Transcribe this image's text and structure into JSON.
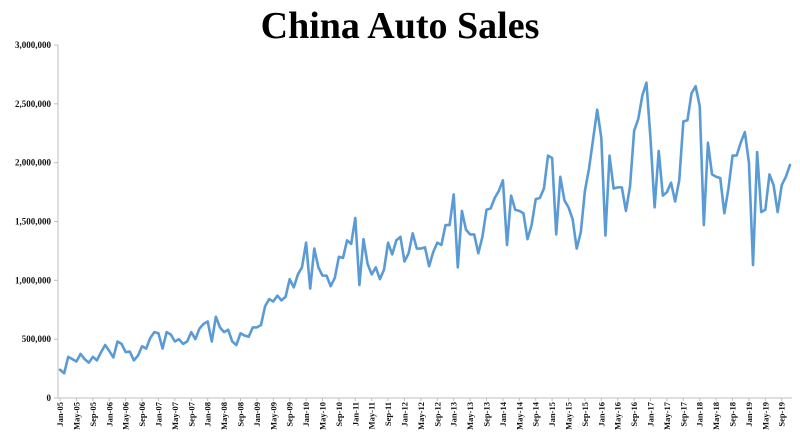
{
  "chart_data": {
    "type": "line",
    "title": "China Auto Sales",
    "xlabel": "",
    "ylabel": "",
    "ylim": [
      0,
      3000000
    ],
    "grid": false,
    "legend": "none",
    "series_color": "#5B9BD5",
    "y_ticks": [
      "0",
      "500,000",
      "1,000,000",
      "1,500,000",
      "2,000,000",
      "2,500,000",
      "3,000,000"
    ],
    "x_tick_labels": [
      "Jan-05",
      "May-05",
      "Sep-05",
      "Jan-06",
      "May-06",
      "Sep-06",
      "Jan-07",
      "May-07",
      "Sep-07",
      "Jan-08",
      "May-08",
      "Sep-08",
      "Jan-09",
      "May-09",
      "Sep-09",
      "Jan-10",
      "May-10",
      "Sep-10",
      "Jan-11",
      "May-11",
      "Sep-11",
      "Jan-12",
      "May-12",
      "Sep-12",
      "Jan-13",
      "May-13",
      "Sep-13",
      "Jan-14",
      "May-14",
      "Sep-14",
      "Jan-15",
      "May-15",
      "Sep-15",
      "Jan-16",
      "May-16",
      "Sep-16",
      "Jan-17",
      "May-17",
      "Sep-17",
      "Jan-18",
      "May-18",
      "Sep-18",
      "Jan-19",
      "May-19",
      "Sep-19"
    ],
    "series": [
      {
        "values": [
          240000,
          210000,
          350000,
          330000,
          310000,
          375000,
          330000,
          300000,
          350000,
          320000,
          390000,
          450000,
          400000,
          345000,
          480000,
          460000,
          390000,
          395000,
          320000,
          360000,
          440000,
          420000,
          510000,
          560000,
          550000,
          420000,
          560000,
          540000,
          480000,
          500000,
          460000,
          480000,
          560000,
          500000,
          590000,
          630000,
          650000,
          480000,
          690000,
          600000,
          560000,
          580000,
          480000,
          450000,
          550000,
          530000,
          520000,
          600000,
          600000,
          620000,
          780000,
          840000,
          820000,
          870000,
          830000,
          860000,
          1010000,
          940000,
          1050000,
          1110000,
          1320000,
          930000,
          1270000,
          1110000,
          1040000,
          1040000,
          950000,
          1020000,
          1200000,
          1190000,
          1340000,
          1310000,
          1530000,
          960000,
          1350000,
          1140000,
          1050000,
          1110000,
          1010000,
          1090000,
          1320000,
          1220000,
          1340000,
          1370000,
          1160000,
          1230000,
          1400000,
          1270000,
          1270000,
          1280000,
          1120000,
          1240000,
          1320000,
          1300000,
          1470000,
          1470000,
          1730000,
          1110000,
          1590000,
          1430000,
          1390000,
          1390000,
          1230000,
          1370000,
          1600000,
          1610000,
          1700000,
          1760000,
          1850000,
          1300000,
          1720000,
          1600000,
          1590000,
          1570000,
          1350000,
          1470000,
          1690000,
          1700000,
          1780000,
          2060000,
          2040000,
          1390000,
          1880000,
          1680000,
          1620000,
          1520000,
          1270000,
          1410000,
          1760000,
          1950000,
          2200000,
          2450000,
          2210000,
          1380000,
          2060000,
          1780000,
          1790000,
          1790000,
          1590000,
          1800000,
          2270000,
          2370000,
          2570000,
          2680000,
          2200000,
          1620000,
          2100000,
          1720000,
          1750000,
          1830000,
          1670000,
          1850000,
          2350000,
          2360000,
          2590000,
          2650000,
          2480000,
          1470000,
          2170000,
          1900000,
          1880000,
          1870000,
          1570000,
          1780000,
          2060000,
          2060000,
          2170000,
          2260000,
          2000000,
          1130000,
          2090000,
          1580000,
          1600000,
          1900000,
          1810000,
          1580000,
          1810000,
          1880000,
          1980000
        ]
      }
    ]
  }
}
